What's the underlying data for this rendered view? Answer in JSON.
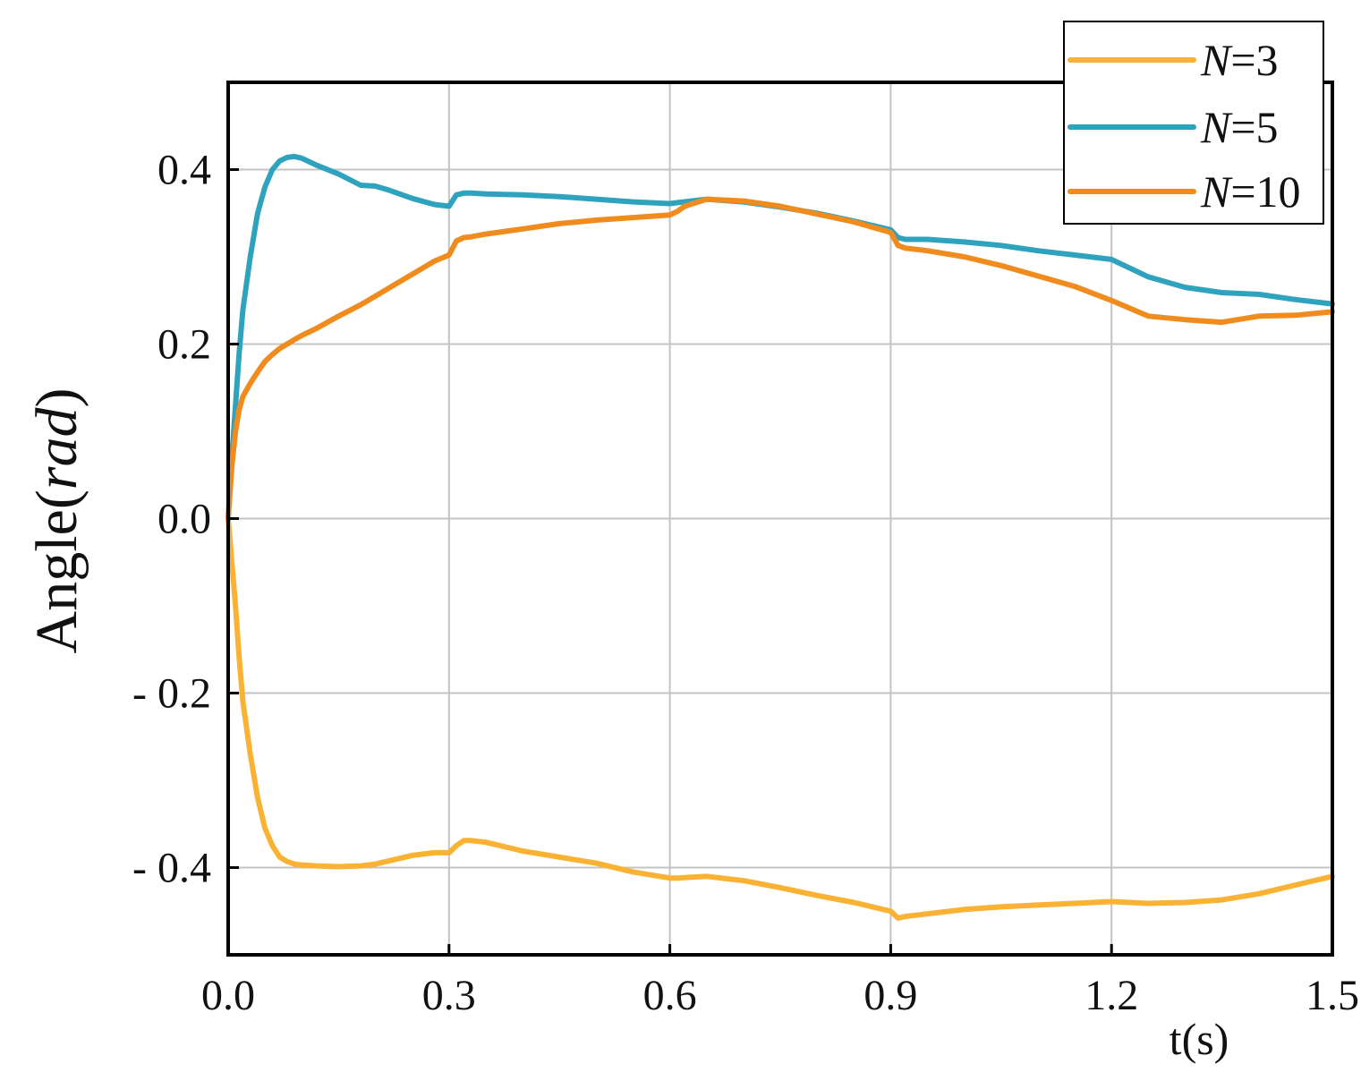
{
  "chart_data": {
    "type": "line",
    "title": "",
    "xlabel": "t(s)",
    "ylabel": {
      "prefix": "Angle(",
      "italic": "rad",
      "suffix": ")"
    },
    "xlim": [
      0,
      1.5
    ],
    "ylim": [
      -0.5,
      0.5
    ],
    "x_ticks": [
      0.0,
      0.3,
      0.6,
      0.9,
      1.2,
      1.5
    ],
    "x_tick_labels": [
      "0.0",
      "0.3",
      "0.6",
      "0.9",
      "1.2",
      "1.5"
    ],
    "y_ticks": [
      0.4,
      0.2,
      0.0,
      -0.2,
      -0.4
    ],
    "y_tick_labels": [
      "0.4",
      "0.2",
      "0.0",
      "- 0.2",
      "- 0.4"
    ],
    "grid": true,
    "legend_position": "top-right",
    "series": [
      {
        "name_italic": "N",
        "name_rest": "=3",
        "color": "#F9B233",
        "x": [
          0,
          0.005,
          0.01,
          0.015,
          0.02,
          0.03,
          0.04,
          0.05,
          0.06,
          0.07,
          0.08,
          0.09,
          0.1,
          0.12,
          0.15,
          0.18,
          0.2,
          0.22,
          0.25,
          0.28,
          0.3,
          0.31,
          0.32,
          0.33,
          0.35,
          0.4,
          0.45,
          0.5,
          0.55,
          0.6,
          0.61,
          0.65,
          0.7,
          0.75,
          0.8,
          0.85,
          0.9,
          0.91,
          0.92,
          0.95,
          1.0,
          1.05,
          1.1,
          1.15,
          1.2,
          1.25,
          1.3,
          1.35,
          1.4,
          1.45,
          1.5
        ],
        "y": [
          0,
          -0.05,
          -0.1,
          -0.16,
          -0.21,
          -0.27,
          -0.32,
          -0.355,
          -0.375,
          -0.388,
          -0.393,
          -0.396,
          -0.397,
          -0.398,
          -0.399,
          -0.398,
          -0.396,
          -0.392,
          -0.386,
          -0.383,
          -0.383,
          -0.375,
          -0.369,
          -0.369,
          -0.371,
          -0.381,
          -0.388,
          -0.395,
          -0.405,
          -0.412,
          -0.412,
          -0.41,
          -0.415,
          -0.423,
          -0.432,
          -0.44,
          -0.45,
          -0.458,
          -0.456,
          -0.453,
          -0.448,
          -0.445,
          -0.443,
          -0.441,
          -0.439,
          -0.441,
          -0.44,
          -0.437,
          -0.43,
          -0.42,
          -0.41
        ]
      },
      {
        "name_italic": "N",
        "name_rest": "=5",
        "color": "#2FA3BE",
        "x": [
          0,
          0.005,
          0.01,
          0.015,
          0.02,
          0.03,
          0.04,
          0.05,
          0.06,
          0.07,
          0.08,
          0.09,
          0.1,
          0.12,
          0.15,
          0.18,
          0.2,
          0.22,
          0.25,
          0.28,
          0.3,
          0.31,
          0.32,
          0.33,
          0.35,
          0.4,
          0.45,
          0.5,
          0.55,
          0.6,
          0.61,
          0.65,
          0.7,
          0.75,
          0.8,
          0.85,
          0.9,
          0.91,
          0.92,
          0.95,
          1.0,
          1.05,
          1.1,
          1.15,
          1.2,
          1.25,
          1.3,
          1.35,
          1.4,
          1.45,
          1.5
        ],
        "y": [
          0,
          0.07,
          0.13,
          0.19,
          0.24,
          0.3,
          0.35,
          0.38,
          0.4,
          0.41,
          0.414,
          0.415,
          0.413,
          0.405,
          0.395,
          0.382,
          0.381,
          0.376,
          0.367,
          0.36,
          0.358,
          0.371,
          0.373,
          0.373,
          0.372,
          0.371,
          0.369,
          0.366,
          0.363,
          0.361,
          0.362,
          0.366,
          0.363,
          0.357,
          0.35,
          0.341,
          0.331,
          0.322,
          0.32,
          0.32,
          0.317,
          0.313,
          0.307,
          0.302,
          0.297,
          0.277,
          0.265,
          0.259,
          0.257,
          0.251,
          0.246
        ]
      },
      {
        "name_italic": "N",
        "name_rest": "=10",
        "color": "#F08C1E",
        "x": [
          0,
          0.005,
          0.01,
          0.015,
          0.02,
          0.03,
          0.04,
          0.05,
          0.06,
          0.07,
          0.08,
          0.09,
          0.1,
          0.12,
          0.15,
          0.18,
          0.2,
          0.22,
          0.25,
          0.28,
          0.3,
          0.31,
          0.32,
          0.33,
          0.35,
          0.4,
          0.45,
          0.5,
          0.55,
          0.6,
          0.61,
          0.62,
          0.65,
          0.7,
          0.75,
          0.8,
          0.85,
          0.9,
          0.91,
          0.92,
          0.95,
          1.0,
          1.05,
          1.1,
          1.15,
          1.2,
          1.25,
          1.3,
          1.35,
          1.4,
          1.45,
          1.5
        ],
        "y": [
          0,
          0.06,
          0.1,
          0.125,
          0.14,
          0.155,
          0.168,
          0.18,
          0.188,
          0.195,
          0.2,
          0.205,
          0.21,
          0.218,
          0.232,
          0.245,
          0.255,
          0.265,
          0.28,
          0.295,
          0.302,
          0.318,
          0.322,
          0.323,
          0.326,
          0.332,
          0.338,
          0.342,
          0.345,
          0.348,
          0.352,
          0.358,
          0.366,
          0.364,
          0.358,
          0.349,
          0.34,
          0.328,
          0.313,
          0.31,
          0.307,
          0.3,
          0.29,
          0.278,
          0.266,
          0.25,
          0.232,
          0.228,
          0.225,
          0.232,
          0.233,
          0.237
        ]
      }
    ]
  }
}
